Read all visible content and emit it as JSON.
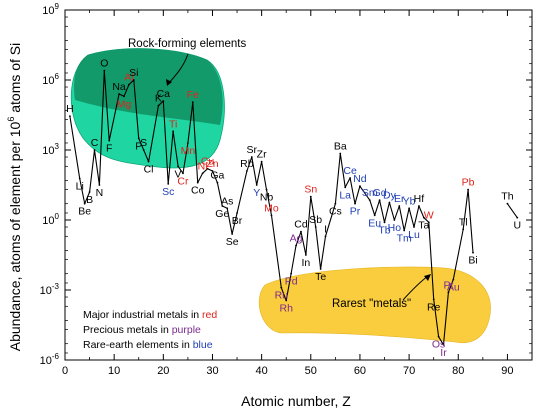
{
  "chart_data": {
    "type": "line",
    "xlabel": "Atomic number, Z",
    "ylabel_prefix": "Abundance, atoms of element per 10",
    "ylabel_sup": "6",
    "ylabel_suffix": " atoms of Si",
    "xlim": [
      0,
      95
    ],
    "ylim_log10": [
      -6,
      9
    ],
    "x_ticks": [
      0,
      10,
      20,
      30,
      40,
      50,
      60,
      70,
      80,
      90
    ],
    "y_tick_exponents": [
      -6,
      -3,
      0,
      3,
      6,
      9
    ],
    "y_tick_base": "10",
    "colors": {
      "major": "#e2231a",
      "precious": "#7b2a8f",
      "rare": "#1f3fb5",
      "other": "#000000",
      "rock_fill": "#1fd6a2",
      "rock_dark": "#108f61",
      "rare_fill": "#f9cd3d"
    },
    "series": [
      {
        "points": [
          {
            "z": 1,
            "s": "H",
            "lv": 4.45,
            "cat": "other"
          },
          {
            "z": 3,
            "s": "Li",
            "lv": 1.78,
            "cat": "other"
          },
          {
            "z": 4,
            "s": "Be",
            "lv": 0.7,
            "cat": "other"
          },
          {
            "z": 5,
            "s": "B",
            "lv": 1.2,
            "cat": "other"
          },
          {
            "z": 6,
            "s": "C",
            "lv": 3.0,
            "cat": "other"
          },
          {
            "z": 7,
            "s": "N",
            "lv": 1.5,
            "cat": "other"
          },
          {
            "z": 8,
            "s": "O",
            "lv": 6.4,
            "cat": "other"
          },
          {
            "z": 9,
            "s": "F",
            "lv": 3.4,
            "cat": "other"
          },
          {
            "z": 11,
            "s": "Na",
            "lv": 5.4,
            "cat": "other"
          },
          {
            "z": 12,
            "s": "Mg",
            "lv": 5.3,
            "cat": "major"
          },
          {
            "z": 13,
            "s": "Al",
            "lv": 5.8,
            "cat": "major"
          },
          {
            "z": 14,
            "s": "Si",
            "lv": 6.0,
            "cat": "other"
          },
          {
            "z": 15,
            "s": "P",
            "lv": 3.5,
            "cat": "other"
          },
          {
            "z": 16,
            "s": "S",
            "lv": 3.0,
            "cat": "other"
          },
          {
            "z": 17,
            "s": "Cl",
            "lv": 2.5,
            "cat": "other"
          },
          {
            "z": 19,
            "s": "K",
            "lv": 4.9,
            "cat": "other"
          },
          {
            "z": 20,
            "s": "Ca",
            "lv": 5.1,
            "cat": "other"
          },
          {
            "z": 21,
            "s": "Sc",
            "lv": 1.55,
            "cat": "rare"
          },
          {
            "z": 22,
            "s": "Ti",
            "lv": 3.8,
            "cat": "major"
          },
          {
            "z": 23,
            "s": "V",
            "lv": 2.3,
            "cat": "other"
          },
          {
            "z": 24,
            "s": "Cr",
            "lv": 2.0,
            "cat": "major"
          },
          {
            "z": 25,
            "s": "Mn",
            "lv": 3.3,
            "cat": "major"
          },
          {
            "z": 26,
            "s": "Fe",
            "lv": 5.05,
            "cat": "major"
          },
          {
            "z": 27,
            "s": "Co",
            "lv": 1.6,
            "cat": "other"
          },
          {
            "z": 28,
            "s": "Ni",
            "lv": 2.0,
            "cat": "major"
          },
          {
            "z": 29,
            "s": "Cu",
            "lv": 2.2,
            "cat": "major"
          },
          {
            "z": 30,
            "s": "Zn",
            "lv": 2.1,
            "cat": "major"
          },
          {
            "z": 31,
            "s": "Ga",
            "lv": 1.6,
            "cat": "other"
          },
          {
            "z": 32,
            "s": "Ge",
            "lv": 0.6,
            "cat": "other"
          },
          {
            "z": 33,
            "s": "As",
            "lv": 0.5,
            "cat": "other"
          },
          {
            "z": 34,
            "s": "Se",
            "lv": -0.6,
            "cat": "other"
          },
          {
            "z": 35,
            "s": "Br",
            "lv": 0.3,
            "cat": "other"
          },
          {
            "z": 37,
            "s": "Rb",
            "lv": 2.1,
            "cat": "other"
          },
          {
            "z": 38,
            "s": "Sr",
            "lv": 2.7,
            "cat": "other"
          },
          {
            "z": 39,
            "s": "Y",
            "lv": 1.5,
            "cat": "rare"
          },
          {
            "z": 40,
            "s": "Zr",
            "lv": 2.5,
            "cat": "other"
          },
          {
            "z": 41,
            "s": "Nb",
            "lv": 1.3,
            "cat": "other"
          },
          {
            "z": 42,
            "s": "Mo",
            "lv": 0.2,
            "cat": "major"
          },
          {
            "z": 44,
            "s": "Ru",
            "lv": -2.9,
            "cat": "precious"
          },
          {
            "z": 45,
            "s": "Rh",
            "lv": -3.45,
            "cat": "precious"
          },
          {
            "z": 46,
            "s": "Pd",
            "lv": -2.3,
            "cat": "precious"
          },
          {
            "z": 47,
            "s": "Ag",
            "lv": -1.1,
            "cat": "precious"
          },
          {
            "z": 48,
            "s": "Cd",
            "lv": -0.5,
            "cat": "other"
          },
          {
            "z": 49,
            "s": "In",
            "lv": -1.5,
            "cat": "other"
          },
          {
            "z": 50,
            "s": "Sn",
            "lv": 1.0,
            "cat": "major"
          },
          {
            "z": 51,
            "s": "Sb",
            "lv": -0.3,
            "cat": "other"
          },
          {
            "z": 52,
            "s": "Te",
            "lv": -2.1,
            "cat": "other"
          },
          {
            "z": 53,
            "s": "I",
            "lv": -0.7,
            "cat": "other"
          },
          {
            "z": 55,
            "s": "Cs",
            "lv": 0.7,
            "cat": "other"
          },
          {
            "z": 56,
            "s": "Ba",
            "lv": 2.85,
            "cat": "other"
          },
          {
            "z": 57,
            "s": "La",
            "lv": 1.4,
            "cat": "rare"
          },
          {
            "z": 58,
            "s": "Ce",
            "lv": 1.8,
            "cat": "rare"
          },
          {
            "z": 59,
            "s": "Pr",
            "lv": 0.7,
            "cat": "rare"
          },
          {
            "z": 60,
            "s": "Nd",
            "lv": 1.45,
            "cat": "rare"
          },
          {
            "z": 62,
            "s": "Sm",
            "lv": 0.85,
            "cat": "rare"
          },
          {
            "z": 63,
            "s": "Eu",
            "lv": 0.2,
            "cat": "rare"
          },
          {
            "z": 64,
            "s": "Gd",
            "lv": 0.85,
            "cat": "rare"
          },
          {
            "z": 65,
            "s": "Tb",
            "lv": -0.1,
            "cat": "rare"
          },
          {
            "z": 66,
            "s": "Dy",
            "lv": 0.75,
            "cat": "rare"
          },
          {
            "z": 67,
            "s": "Ho",
            "lv": 0.0,
            "cat": "rare"
          },
          {
            "z": 68,
            "s": "Er",
            "lv": 0.6,
            "cat": "rare"
          },
          {
            "z": 69,
            "s": "Tm",
            "lv": -0.45,
            "cat": "rare"
          },
          {
            "z": 70,
            "s": "Yb",
            "lv": 0.5,
            "cat": "rare"
          },
          {
            "z": 71,
            "s": "Lu",
            "lv": -0.3,
            "cat": "rare"
          },
          {
            "z": 72,
            "s": "Hf",
            "lv": 0.6,
            "cat": "other"
          },
          {
            "z": 73,
            "s": "Ta",
            "lv": 0.1,
            "cat": "other"
          },
          {
            "z": 74,
            "s": "W",
            "lv": -0.1,
            "cat": "major"
          },
          {
            "z": 75,
            "s": "Re",
            "lv": -3.4,
            "cat": "other"
          },
          {
            "z": 76,
            "s": "Os",
            "lv": -5.0,
            "cat": "precious"
          },
          {
            "z": 77,
            "s": "Ir",
            "lv": -5.35,
            "cat": "precious"
          },
          {
            "z": 78,
            "s": "Pt",
            "lv": -3.1,
            "cat": "precious"
          },
          {
            "z": 79,
            "s": "Au",
            "lv": -2.55,
            "cat": "precious"
          },
          {
            "z": 81,
            "s": "Tl",
            "lv": -0.4,
            "cat": "other"
          },
          {
            "z": 82,
            "s": "Pb",
            "lv": 1.3,
            "cat": "major"
          },
          {
            "z": 83,
            "s": "Bi",
            "lv": -1.4,
            "cat": "other"
          }
        ]
      },
      {
        "points": [
          {
            "z": 90,
            "s": "Th",
            "lv": 0.7,
            "cat": "other"
          },
          {
            "z": 92,
            "s": "U",
            "lv": 0.1,
            "cat": "other"
          }
        ]
      }
    ],
    "regions": [
      {
        "label": "Rock-forming elements"
      },
      {
        "label": "Rarest \"metals\""
      }
    ],
    "legend": [
      {
        "prefix": "Major industrial metals in ",
        "word": "red",
        "cat": "major"
      },
      {
        "prefix": "Precious metals in ",
        "word": "purple",
        "cat": "precious"
      },
      {
        "prefix": "Rare-earth elements in ",
        "word": "blue",
        "cat": "rare"
      }
    ]
  }
}
